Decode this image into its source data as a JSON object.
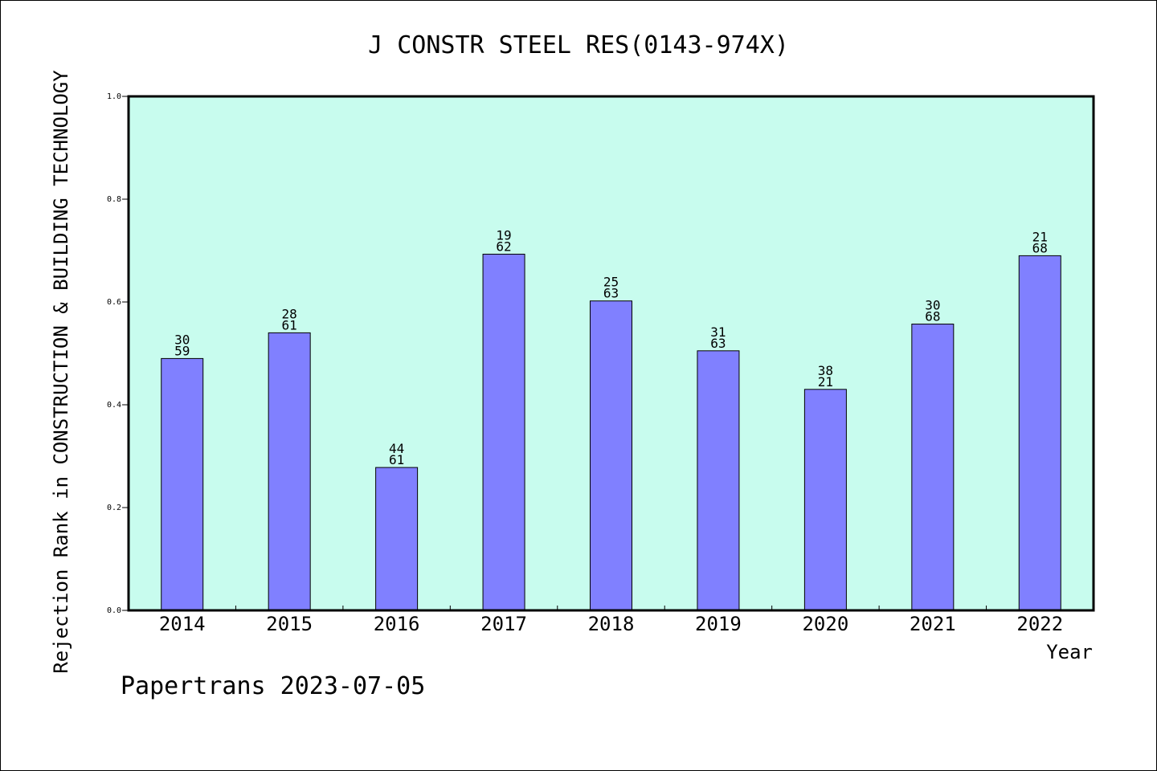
{
  "chart_data": {
    "type": "bar",
    "title": "J CONSTR STEEL RES(0143-974X)",
    "xlabel": "Year",
    "ylabel": "Rejection Rank in CONSTRUCTION & BUILDING TECHNOLOGY",
    "ylim": [
      0,
      1.0
    ],
    "yticks": [
      "0.0",
      "0.2",
      "0.4",
      "0.6",
      "0.8",
      "1.0"
    ],
    "grid": false,
    "categories": [
      "2014",
      "2015",
      "2016",
      "2017",
      "2018",
      "2019",
      "2020",
      "2021",
      "2022"
    ],
    "values": [
      0.49,
      0.54,
      0.278,
      0.693,
      0.602,
      0.505,
      0.43,
      0.557,
      0.69
    ],
    "labels_top": [
      "30",
      "28",
      "44",
      "19",
      "25",
      "31",
      "38",
      "30",
      "21"
    ],
    "labels_bottom": [
      "59",
      "61",
      "61",
      "62",
      "63",
      "63",
      "21",
      "68",
      "68"
    ],
    "colors": {
      "plot_bg": "#c8fcee",
      "bar_fill": "#8080ff",
      "bar_stroke": "#000000"
    }
  },
  "footer": "Papertrans 2023-07-05"
}
